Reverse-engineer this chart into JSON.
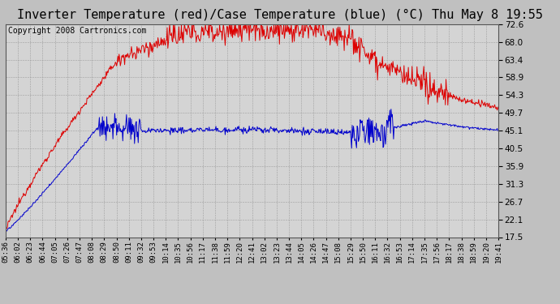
{
  "title": "Inverter Temperature (red)/Case Temperature (blue) (°C) Thu May 8 19:55",
  "copyright": "Copyright 2008 Cartronics.com",
  "yticks": [
    17.5,
    22.1,
    26.7,
    31.3,
    35.9,
    40.5,
    45.1,
    49.7,
    54.3,
    58.9,
    63.4,
    68.0,
    72.6
  ],
  "ymin": 17.5,
  "ymax": 72.6,
  "xtick_labels": [
    "05:36",
    "06:02",
    "06:23",
    "06:44",
    "07:05",
    "07:26",
    "07:47",
    "08:08",
    "08:29",
    "08:50",
    "09:11",
    "09:32",
    "09:53",
    "10:14",
    "10:35",
    "10:56",
    "11:17",
    "11:38",
    "11:59",
    "12:20",
    "12:41",
    "13:02",
    "13:23",
    "13:44",
    "14:05",
    "14:26",
    "14:47",
    "15:08",
    "15:29",
    "15:50",
    "16:11",
    "16:32",
    "16:53",
    "17:14",
    "17:35",
    "17:56",
    "18:17",
    "18:38",
    "18:59",
    "19:20",
    "19:41"
  ],
  "bg_color": "#c0c0c0",
  "plot_bg": "#d4d4d4",
  "red_color": "#dd0000",
  "blue_color": "#0000cc",
  "title_fontsize": 11,
  "copyright_fontsize": 7
}
